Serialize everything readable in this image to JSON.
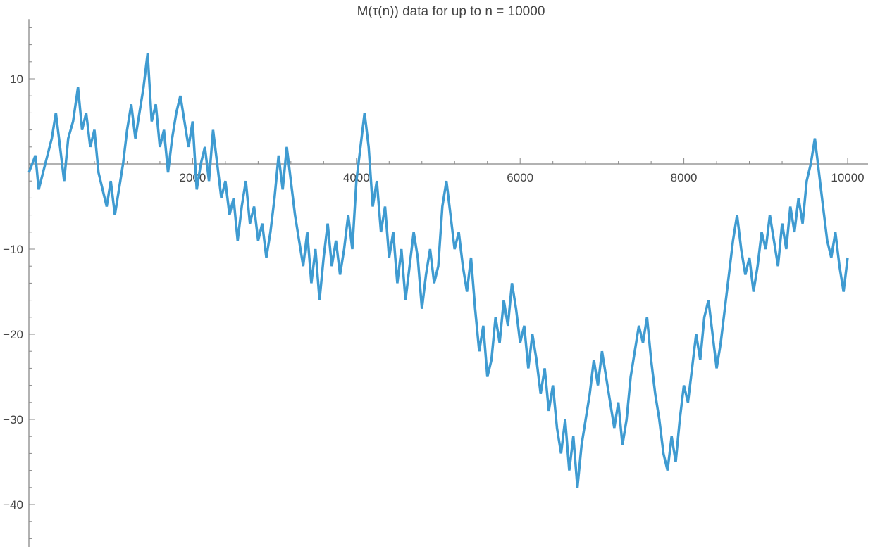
{
  "chart_data": {
    "type": "line",
    "title": "M(τ(n)) data for up to n = 10000",
    "xlabel": "",
    "ylabel": "",
    "xlim": [
      0,
      10000
    ],
    "ylim": [
      -45,
      17
    ],
    "x_ticks": [
      2000,
      4000,
      6000,
      8000,
      10000
    ],
    "x_tick_labels": [
      "2000",
      "4000",
      "6000",
      "8000",
      "10000"
    ],
    "y_ticks": [
      10,
      -10,
      -20,
      -30,
      -40
    ],
    "y_tick_labels": [
      "10",
      "−10",
      "−20",
      "−30",
      "−40"
    ],
    "grid": false,
    "series": [
      {
        "color": "#3f9bd1",
        "points": [
          [
            0,
            -1
          ],
          [
            80,
            1
          ],
          [
            120,
            -3
          ],
          [
            200,
            0
          ],
          [
            280,
            3
          ],
          [
            330,
            6
          ],
          [
            380,
            2
          ],
          [
            430,
            -2
          ],
          [
            480,
            3
          ],
          [
            540,
            5
          ],
          [
            600,
            9
          ],
          [
            650,
            4
          ],
          [
            700,
            6
          ],
          [
            750,
            2
          ],
          [
            800,
            4
          ],
          [
            850,
            -1
          ],
          [
            900,
            -3
          ],
          [
            950,
            -5
          ],
          [
            1000,
            -2
          ],
          [
            1050,
            -6
          ],
          [
            1100,
            -3
          ],
          [
            1150,
            0
          ],
          [
            1200,
            4
          ],
          [
            1250,
            7
          ],
          [
            1300,
            3
          ],
          [
            1350,
            6
          ],
          [
            1400,
            9
          ],
          [
            1450,
            13
          ],
          [
            1500,
            5
          ],
          [
            1550,
            7
          ],
          [
            1600,
            2
          ],
          [
            1650,
            4
          ],
          [
            1700,
            -1
          ],
          [
            1750,
            3
          ],
          [
            1800,
            6
          ],
          [
            1850,
            8
          ],
          [
            1900,
            5
          ],
          [
            1950,
            2
          ],
          [
            2000,
            5
          ],
          [
            2050,
            -3
          ],
          [
            2100,
            0
          ],
          [
            2150,
            2
          ],
          [
            2200,
            -2
          ],
          [
            2250,
            4
          ],
          [
            2300,
            0
          ],
          [
            2350,
            -4
          ],
          [
            2400,
            -2
          ],
          [
            2450,
            -6
          ],
          [
            2500,
            -4
          ],
          [
            2550,
            -9
          ],
          [
            2600,
            -5
          ],
          [
            2650,
            -2
          ],
          [
            2700,
            -7
          ],
          [
            2750,
            -5
          ],
          [
            2800,
            -9
          ],
          [
            2850,
            -7
          ],
          [
            2900,
            -11
          ],
          [
            2950,
            -8
          ],
          [
            3000,
            -4
          ],
          [
            3050,
            1
          ],
          [
            3100,
            -3
          ],
          [
            3150,
            2
          ],
          [
            3200,
            -2
          ],
          [
            3250,
            -6
          ],
          [
            3300,
            -9
          ],
          [
            3350,
            -12
          ],
          [
            3400,
            -8
          ],
          [
            3450,
            -14
          ],
          [
            3500,
            -10
          ],
          [
            3550,
            -16
          ],
          [
            3600,
            -11
          ],
          [
            3650,
            -7
          ],
          [
            3700,
            -12
          ],
          [
            3750,
            -9
          ],
          [
            3800,
            -13
          ],
          [
            3850,
            -10
          ],
          [
            3900,
            -6
          ],
          [
            3950,
            -10
          ],
          [
            4000,
            -2
          ],
          [
            4050,
            2
          ],
          [
            4100,
            6
          ],
          [
            4150,
            2
          ],
          [
            4200,
            -5
          ],
          [
            4250,
            -2
          ],
          [
            4300,
            -8
          ],
          [
            4350,
            -5
          ],
          [
            4400,
            -11
          ],
          [
            4450,
            -8
          ],
          [
            4500,
            -14
          ],
          [
            4550,
            -10
          ],
          [
            4600,
            -16
          ],
          [
            4650,
            -12
          ],
          [
            4700,
            -8
          ],
          [
            4750,
            -11
          ],
          [
            4800,
            -17
          ],
          [
            4850,
            -13
          ],
          [
            4900,
            -10
          ],
          [
            4950,
            -14
          ],
          [
            5000,
            -12
          ],
          [
            5050,
            -5
          ],
          [
            5100,
            -2
          ],
          [
            5150,
            -6
          ],
          [
            5200,
            -10
          ],
          [
            5250,
            -8
          ],
          [
            5300,
            -12
          ],
          [
            5350,
            -15
          ],
          [
            5400,
            -11
          ],
          [
            5450,
            -17
          ],
          [
            5500,
            -22
          ],
          [
            5550,
            -19
          ],
          [
            5600,
            -25
          ],
          [
            5650,
            -23
          ],
          [
            5700,
            -18
          ],
          [
            5750,
            -21
          ],
          [
            5800,
            -16
          ],
          [
            5850,
            -19
          ],
          [
            5900,
            -14
          ],
          [
            5950,
            -17
          ],
          [
            6000,
            -21
          ],
          [
            6050,
            -19
          ],
          [
            6100,
            -24
          ],
          [
            6150,
            -20
          ],
          [
            6200,
            -23
          ],
          [
            6250,
            -27
          ],
          [
            6300,
            -24
          ],
          [
            6350,
            -29
          ],
          [
            6400,
            -26
          ],
          [
            6450,
            -31
          ],
          [
            6500,
            -34
          ],
          [
            6550,
            -30
          ],
          [
            6600,
            -36
          ],
          [
            6650,
            -32
          ],
          [
            6700,
            -38
          ],
          [
            6750,
            -33
          ],
          [
            6800,
            -30
          ],
          [
            6850,
            -27
          ],
          [
            6900,
            -23
          ],
          [
            6950,
            -26
          ],
          [
            7000,
            -22
          ],
          [
            7050,
            -25
          ],
          [
            7100,
            -28
          ],
          [
            7150,
            -31
          ],
          [
            7200,
            -28
          ],
          [
            7250,
            -33
          ],
          [
            7300,
            -30
          ],
          [
            7350,
            -25
          ],
          [
            7400,
            -22
          ],
          [
            7450,
            -19
          ],
          [
            7500,
            -21
          ],
          [
            7550,
            -18
          ],
          [
            7600,
            -23
          ],
          [
            7650,
            -27
          ],
          [
            7700,
            -30
          ],
          [
            7750,
            -34
          ],
          [
            7800,
            -36
          ],
          [
            7850,
            -32
          ],
          [
            7900,
            -35
          ],
          [
            7950,
            -30
          ],
          [
            8000,
            -26
          ],
          [
            8050,
            -28
          ],
          [
            8100,
            -24
          ],
          [
            8150,
            -20
          ],
          [
            8200,
            -23
          ],
          [
            8250,
            -18
          ],
          [
            8300,
            -16
          ],
          [
            8350,
            -20
          ],
          [
            8400,
            -24
          ],
          [
            8450,
            -21
          ],
          [
            8500,
            -17
          ],
          [
            8550,
            -13
          ],
          [
            8600,
            -9
          ],
          [
            8650,
            -6
          ],
          [
            8700,
            -10
          ],
          [
            8750,
            -13
          ],
          [
            8800,
            -11
          ],
          [
            8850,
            -15
          ],
          [
            8900,
            -12
          ],
          [
            8950,
            -8
          ],
          [
            9000,
            -10
          ],
          [
            9050,
            -6
          ],
          [
            9100,
            -9
          ],
          [
            9150,
            -12
          ],
          [
            9200,
            -7
          ],
          [
            9250,
            -10
          ],
          [
            9300,
            -5
          ],
          [
            9350,
            -8
          ],
          [
            9400,
            -4
          ],
          [
            9450,
            -7
          ],
          [
            9500,
            -2
          ],
          [
            9550,
            0
          ],
          [
            9600,
            3
          ],
          [
            9650,
            -1
          ],
          [
            9700,
            -5
          ],
          [
            9750,
            -9
          ],
          [
            9800,
            -11
          ],
          [
            9850,
            -8
          ],
          [
            9900,
            -12
          ],
          [
            9950,
            -15
          ],
          [
            10000,
            -11
          ]
        ]
      }
    ]
  }
}
